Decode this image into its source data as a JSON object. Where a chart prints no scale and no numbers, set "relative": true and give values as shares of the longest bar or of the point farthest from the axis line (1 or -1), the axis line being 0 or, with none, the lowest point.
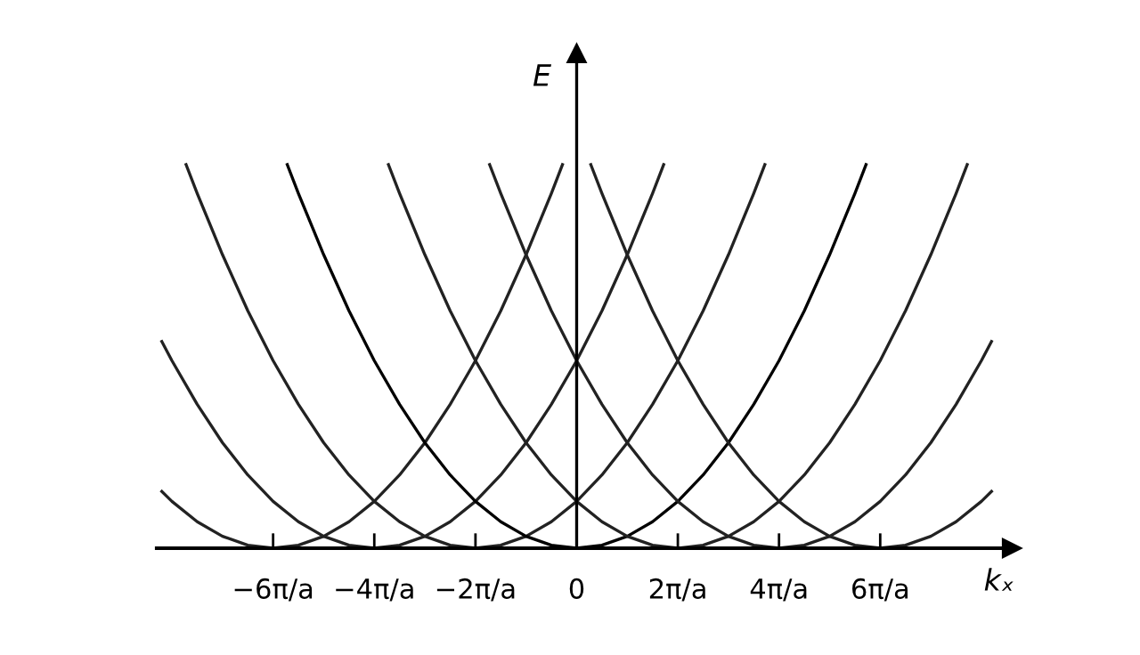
{
  "chart_data": {
    "type": "line",
    "relative": true,
    "xlabel": "kₓ",
    "ylabel": "E",
    "xlim": [
      -8.3,
      8.6
    ],
    "xticks": [
      {
        "value": -6,
        "label": "−6π/a"
      },
      {
        "value": -4,
        "label": "−4π/a"
      },
      {
        "value": -2,
        "label": "−2π/a"
      },
      0,
      {
        "value": 2,
        "label": "2π/a"
      },
      {
        "value": 4,
        "label": "4π/a"
      },
      {
        "value": 6,
        "label": "6π/a"
      }
    ],
    "grid": false,
    "legend": false,
    "marker": "none",
    "line_style": "solid",
    "series": [
      {
        "color": "#222222",
        "x": [
          -8.2,
          -8,
          -7.5,
          -7,
          -6.5,
          -6,
          -5.5,
          -5,
          -4.5,
          -4,
          -3.5,
          -3,
          -2.5,
          -2,
          -1.5,
          -1,
          -0.5,
          -0.28
        ],
        "values": [
          0.148,
          0.122,
          0.069,
          0.031,
          0.008,
          0,
          0.008,
          0.031,
          0.069,
          0.122,
          0.191,
          0.275,
          0.375,
          0.489,
          0.619,
          0.765,
          0.925,
          1
        ]
      },
      {
        "color": "#222222",
        "x": [
          -8.2,
          -8,
          -7.5,
          -7,
          -6.5,
          -6,
          -5.5,
          -5,
          -4.5,
          -4,
          -3.5,
          -3,
          -2.5,
          -2,
          -1.5,
          -1,
          -0.5,
          0,
          0.5,
          1,
          1.5,
          1.72
        ],
        "values": [
          0.539,
          0.489,
          0.375,
          0.275,
          0.191,
          0.122,
          0.069,
          0.031,
          0.008,
          0,
          0.008,
          0.031,
          0.069,
          0.122,
          0.191,
          0.275,
          0.375,
          0.489,
          0.619,
          0.765,
          0.925,
          1
        ]
      },
      {
        "color": "#222222",
        "x": [
          -7.72,
          -7.5,
          -7,
          -6.5,
          -6,
          -5.5,
          -5,
          -4.5,
          -4,
          -3.5,
          -3,
          -2.5,
          -2,
          -1.5,
          -1,
          -0.5,
          0,
          0.5,
          1,
          1.5,
          2,
          2.5,
          3,
          3.5,
          3.72
        ],
        "values": [
          1,
          0.925,
          0.765,
          0.619,
          0.489,
          0.375,
          0.275,
          0.191,
          0.122,
          0.069,
          0.031,
          0.008,
          0,
          0.008,
          0.031,
          0.069,
          0.122,
          0.191,
          0.275,
          0.375,
          0.489,
          0.619,
          0.765,
          0.925,
          1
        ]
      },
      {
        "color": "#000000",
        "x": [
          -5.72,
          -5.5,
          -5,
          -4.5,
          -4,
          -3.5,
          -3,
          -2.5,
          -2,
          -1.5,
          -1,
          -0.5,
          0,
          0.5,
          1,
          1.5,
          2,
          2.5,
          3,
          3.5,
          4,
          4.5,
          5,
          5.5,
          5.72
        ],
        "values": [
          1,
          0.925,
          0.765,
          0.619,
          0.489,
          0.375,
          0.275,
          0.191,
          0.122,
          0.069,
          0.031,
          0.008,
          0,
          0.008,
          0.031,
          0.069,
          0.122,
          0.191,
          0.275,
          0.375,
          0.489,
          0.619,
          0.765,
          0.925,
          1
        ]
      },
      {
        "color": "#222222",
        "x": [
          -3.72,
          -3.5,
          -3,
          -2.5,
          -2,
          -1.5,
          -1,
          -0.5,
          0,
          0.5,
          1,
          1.5,
          2,
          2.5,
          3,
          3.5,
          4,
          4.5,
          5,
          5.5,
          6,
          6.5,
          7,
          7.5,
          7.72
        ],
        "values": [
          1,
          0.925,
          0.765,
          0.619,
          0.489,
          0.375,
          0.275,
          0.191,
          0.122,
          0.069,
          0.031,
          0.008,
          0,
          0.008,
          0.031,
          0.069,
          0.122,
          0.191,
          0.275,
          0.375,
          0.489,
          0.619,
          0.765,
          0.925,
          1
        ]
      },
      {
        "color": "#222222",
        "x": [
          -1.72,
          -1.5,
          -1,
          -0.5,
          0,
          0.5,
          1,
          1.5,
          2,
          2.5,
          3,
          3.5,
          4,
          4.5,
          5,
          5.5,
          6,
          6.5,
          7,
          7.5,
          8,
          8.2
        ],
        "values": [
          1,
          0.925,
          0.765,
          0.619,
          0.489,
          0.375,
          0.275,
          0.191,
          0.122,
          0.069,
          0.031,
          0.008,
          0,
          0.008,
          0.031,
          0.069,
          0.122,
          0.191,
          0.275,
          0.375,
          0.489,
          0.539
        ]
      },
      {
        "color": "#222222",
        "x": [
          0.28,
          0.5,
          1,
          1.5,
          2,
          2.5,
          3,
          3.5,
          4,
          4.5,
          5,
          5.5,
          6,
          6.5,
          7,
          7.5,
          8,
          8.2
        ],
        "values": [
          1,
          0.925,
          0.765,
          0.619,
          0.489,
          0.375,
          0.275,
          0.191,
          0.122,
          0.069,
          0.031,
          0.008,
          0,
          0.008,
          0.031,
          0.069,
          0.122,
          0.148
        ]
      }
    ]
  }
}
